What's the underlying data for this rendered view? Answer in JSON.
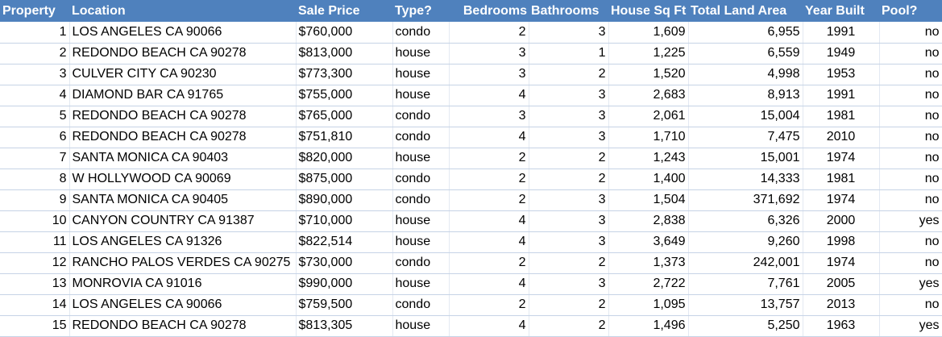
{
  "headers": [
    "Property",
    "Location",
    "Sale Price",
    "Type?",
    "Bedrooms",
    "Bathrooms",
    "House Sq Ft",
    "Total Land Area",
    "Year Built",
    "Pool?"
  ],
  "rows": [
    {
      "property": "1",
      "location": " LOS ANGELES CA  90066",
      "price": "$760,000",
      "type": "condo",
      "bedrooms": "2",
      "bathrooms": "3",
      "sqft": "1,609",
      "land": "6,955",
      "year": "1991",
      "pool": "no"
    },
    {
      "property": "2",
      "location": "REDONDO BEACH CA  90278",
      "price": "$813,000",
      "type": "house",
      "bedrooms": "3",
      "bathrooms": "1",
      "sqft": "1,225",
      "land": "6,559",
      "year": "1949",
      "pool": "no"
    },
    {
      "property": "3",
      "location": "CULVER CITY CA  90230",
      "price": "$773,300",
      "type": "house",
      "bedrooms": "3",
      "bathrooms": "2",
      "sqft": "1,520",
      "land": "4,998",
      "year": "1953",
      "pool": "no"
    },
    {
      "property": "4",
      "location": "DIAMOND BAR CA  91765",
      "price": "$755,000",
      "type": "house",
      "bedrooms": "4",
      "bathrooms": "3",
      "sqft": "2,683",
      "land": "8,913",
      "year": "1991",
      "pool": "no"
    },
    {
      "property": "5",
      "location": "REDONDO BEACH CA  90278",
      "price": "$765,000",
      "type": "condo",
      "bedrooms": "3",
      "bathrooms": "3",
      "sqft": "2,061",
      "land": "15,004",
      "year": "1981",
      "pool": "no"
    },
    {
      "property": "6",
      "location": "REDONDO BEACH CA  90278",
      "price": "$751,810",
      "type": "condo",
      "bedrooms": "4",
      "bathrooms": "3",
      "sqft": "1,710",
      "land": "7,475",
      "year": "2010",
      "pool": "no"
    },
    {
      "property": "7",
      "location": "SANTA MONICA CA  90403",
      "price": "$820,000",
      "type": "house",
      "bedrooms": "2",
      "bathrooms": "2",
      "sqft": "1,243",
      "land": "15,001",
      "year": "1974",
      "pool": "no"
    },
    {
      "property": "8",
      "location": "W HOLLYWOOD CA  90069",
      "price": "$875,000",
      "type": "condo",
      "bedrooms": "2",
      "bathrooms": "2",
      "sqft": "1,400",
      "land": "14,333",
      "year": "1981",
      "pool": "no"
    },
    {
      "property": "9",
      "location": "SANTA MONICA CA  90405",
      "price": "$890,000",
      "type": "condo",
      "bedrooms": "2",
      "bathrooms": "3",
      "sqft": "1,504",
      "land": "371,692",
      "year": "1974",
      "pool": "no"
    },
    {
      "property": "10",
      "location": "CANYON COUNTRY CA  91387",
      "price": "$710,000",
      "type": "house",
      "bedrooms": "4",
      "bathrooms": "3",
      "sqft": "2,838",
      "land": "6,326",
      "year": "2000",
      "pool": "yes"
    },
    {
      "property": "11",
      "location": "LOS ANGELES CA  91326",
      "price": "$822,514",
      "type": "house",
      "bedrooms": "4",
      "bathrooms": "3",
      "sqft": "3,649",
      "land": "9,260",
      "year": "1998",
      "pool": "no"
    },
    {
      "property": "12",
      "location": "RANCHO PALOS VERDES CA 90275",
      "price": "$730,000",
      "type": "condo",
      "bedrooms": "2",
      "bathrooms": "2",
      "sqft": "1,373",
      "land": "242,001",
      "year": "1974",
      "pool": "no"
    },
    {
      "property": "13",
      "location": "MONROVIA CA  91016",
      "price": "$990,000",
      "type": "house",
      "bedrooms": "4",
      "bathrooms": "3",
      "sqft": "2,722",
      "land": "7,761",
      "year": "2005",
      "pool": "yes"
    },
    {
      "property": "14",
      "location": "LOS ANGELES CA  90066",
      "price": "$759,500",
      "type": "condo",
      "bedrooms": "2",
      "bathrooms": "2",
      "sqft": "1,095",
      "land": "13,757",
      "year": "2013",
      "pool": "no"
    },
    {
      "property": "15",
      "location": "REDONDO BEACH CA  90278",
      "price": "$813,305",
      "type": "house",
      "bedrooms": "4",
      "bathrooms": "2",
      "sqft": "1,496",
      "land": "5,250",
      "year": "1963",
      "pool": "yes"
    }
  ],
  "colors": {
    "header_bg": "#4f81bd",
    "header_text": "#ffffff",
    "grid_line": "#c6d3e6"
  }
}
